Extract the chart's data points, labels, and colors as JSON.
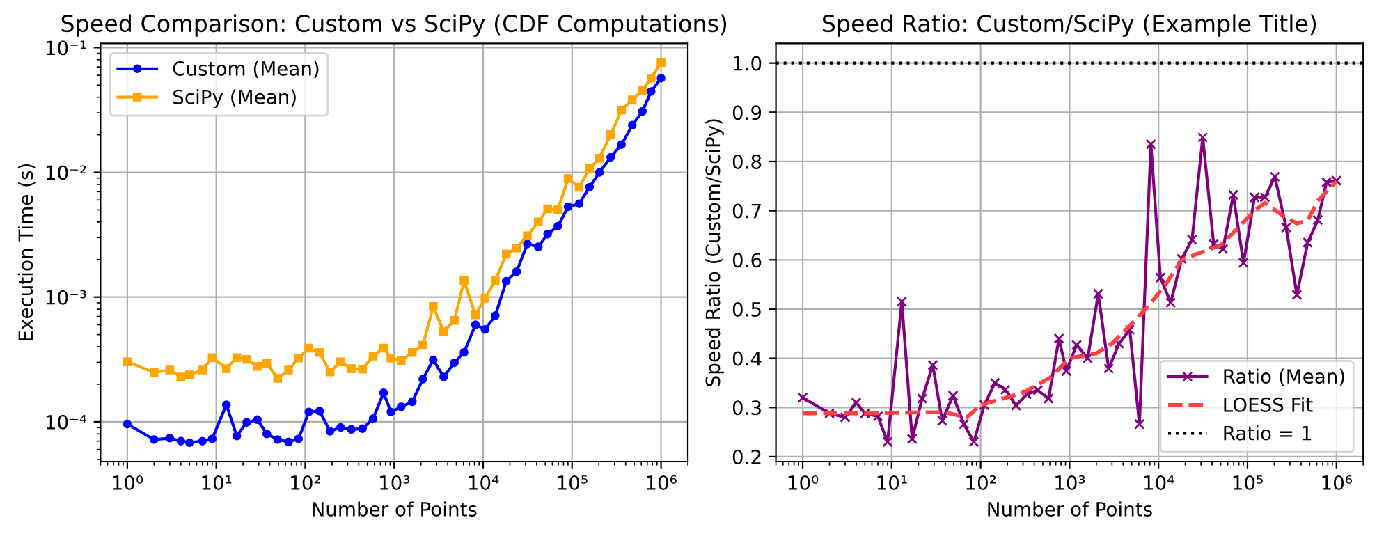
{
  "chart_data": [
    {
      "type": "line",
      "title": "Speed Comparison: Custom vs SciPy (CDF Computations)",
      "xlabel": "Number of Points",
      "ylabel": "Execution Time (s)",
      "log": "xy",
      "grid": true,
      "legend": "top left",
      "x": [
        1,
        2,
        3,
        4,
        5,
        7,
        9,
        13,
        17,
        22,
        29,
        37,
        49,
        65,
        84,
        110,
        145,
        190,
        250,
        330,
        440,
        580,
        760,
        920,
        1200,
        1600,
        2100,
        2750,
        3600,
        4750,
        6100,
        8200,
        10500,
        13700,
        18200,
        23800,
        31400,
        41700,
        53100,
        69200,
        90200,
        120000,
        157000,
        203000,
        272000,
        359000,
        475000,
        617000,
        774000,
        1000000
      ],
      "xlim": [
        0.5,
        2000000
      ],
      "xticks": [
        {
          "value": 1,
          "label": "10⁰"
        },
        {
          "value": 10,
          "label": "10¹"
        },
        {
          "value": 100,
          "label": "10²"
        },
        {
          "value": 1000,
          "label": "10³"
        },
        {
          "value": 10000,
          "label": "10⁴"
        },
        {
          "value": 100000,
          "label": "10⁵"
        },
        {
          "value": 1000000,
          "label": "10⁶"
        }
      ],
      "ylim": [
        4.8e-05,
        0.108
      ],
      "yticks": [
        {
          "value": 0.0001,
          "label": "10⁻⁴"
        },
        {
          "value": 0.001,
          "label": "10⁻³"
        },
        {
          "value": 0.01,
          "label": "10⁻²"
        },
        {
          "value": 0.1,
          "label": "10⁻¹"
        }
      ],
      "series": [
        {
          "name": "Custom (Mean)",
          "color": "#0000ff",
          "marker": "circle",
          "values": [
            9.6e-05,
            7.2e-05,
            7.4e-05,
            7e-05,
            6.8e-05,
            7e-05,
            7.3e-05,
            0.000137,
            7.7e-05,
            9.9e-05,
            0.000104,
            8e-05,
            7.2e-05,
            6.9e-05,
            7.3e-05,
            0.00012,
            0.000122,
            8.4e-05,
            9e-05,
            8.7e-05,
            8.8e-05,
            0.000106,
            0.000171,
            0.00012,
            0.000132,
            0.000145,
            0.00022,
            0.000313,
            0.000229,
            0.000298,
            0.00036,
            0.0006,
            0.00055,
            0.00071,
            0.00134,
            0.0016,
            0.00267,
            0.00253,
            0.0032,
            0.0037,
            0.0053,
            0.0056,
            0.0076,
            0.01,
            0.0132,
            0.0167,
            0.0239,
            0.0308,
            0.0445,
            0.057
          ]
        },
        {
          "name": "SciPy (Mean)",
          "color": "#ffa500",
          "marker": "square",
          "values": [
            0.000303,
            0.000249,
            0.00026,
            0.000229,
            0.000238,
            0.00026,
            0.000327,
            0.000267,
            0.000327,
            0.000316,
            0.000278,
            0.000295,
            0.000223,
            0.00026,
            0.000325,
            0.00039,
            0.00036,
            0.000251,
            0.000303,
            0.000267,
            0.000264,
            0.000336,
            0.00039,
            0.000325,
            0.00031,
            0.00036,
            0.00041,
            0.00084,
            0.00053,
            0.00065,
            0.00135,
            0.00072,
            0.00098,
            0.00136,
            0.00221,
            0.00247,
            0.0031,
            0.004,
            0.0051,
            0.005,
            0.0089,
            0.0076,
            0.0107,
            0.013,
            0.0201,
            0.0316,
            0.0381,
            0.0456,
            0.057,
            0.076
          ]
        }
      ]
    },
    {
      "type": "line",
      "title": "Speed Ratio: Custom/SciPy (Example Title)",
      "xlabel": "Number of Points",
      "ylabel": "Speed Ratio (Custom/SciPy)",
      "log": "x",
      "grid": true,
      "legend": "bottom right",
      "x": [
        1,
        2,
        3,
        4,
        5,
        7,
        9,
        13,
        17,
        22,
        29,
        37,
        49,
        65,
        84,
        110,
        145,
        190,
        250,
        330,
        440,
        580,
        760,
        920,
        1200,
        1600,
        2100,
        2750,
        3600,
        4750,
        6100,
        8200,
        10500,
        13700,
        18200,
        23800,
        31400,
        41700,
        53100,
        69200,
        90200,
        120000,
        157000,
        203000,
        272000,
        359000,
        475000,
        617000,
        774000,
        1000000
      ],
      "xlim": [
        0.5,
        2000000
      ],
      "xticks": [
        {
          "value": 1,
          "label": "10⁰"
        },
        {
          "value": 10,
          "label": "10¹"
        },
        {
          "value": 100,
          "label": "10²"
        },
        {
          "value": 1000,
          "label": "10³"
        },
        {
          "value": 10000,
          "label": "10⁴"
        },
        {
          "value": 100000,
          "label": "10⁵"
        },
        {
          "value": 1000000,
          "label": "10⁶"
        }
      ],
      "ylim": [
        0.19,
        1.04
      ],
      "yticks": [
        0.2,
        0.3,
        0.4,
        0.5,
        0.6,
        0.7,
        0.8,
        0.9,
        {
          "value": 1.0,
          "label": "1.0"
        }
      ],
      "series": [
        {
          "name": "Ratio (Mean)",
          "color": "#800080",
          "marker": "cross",
          "values": [
            0.32,
            0.288,
            0.28,
            0.31,
            0.288,
            0.282,
            0.23,
            0.515,
            0.236,
            0.318,
            0.386,
            0.273,
            0.324,
            0.266,
            0.23,
            0.305,
            0.35,
            0.336,
            0.304,
            0.327,
            0.335,
            0.318,
            0.44,
            0.374,
            0.427,
            0.4,
            0.531,
            0.379,
            0.43,
            0.458,
            0.266,
            0.835,
            0.564,
            0.513,
            0.602,
            0.641,
            0.849,
            0.632,
            0.622,
            0.732,
            0.594,
            0.727,
            0.727,
            0.769,
            0.666,
            0.529,
            0.635,
            0.681,
            0.758,
            0.761
          ]
        },
        {
          "name": "LOESS Fit",
          "color": "#ff4040",
          "marker": "none",
          "line_style": "dashed",
          "x": [
            1,
            5,
            20,
            40,
            70,
            100,
            300,
            600,
            1000,
            2000,
            3000,
            5000,
            8000,
            12000,
            18200,
            30000,
            50000,
            69200,
            120000,
            157000,
            250000,
            359000,
            475000,
            617000,
            1000000
          ],
          "values": [
            0.288,
            0.288,
            0.29,
            0.29,
            0.28,
            0.305,
            0.33,
            0.36,
            0.4,
            0.41,
            0.43,
            0.47,
            0.51,
            0.55,
            0.6,
            0.615,
            0.63,
            0.655,
            0.7,
            0.716,
            0.69,
            0.674,
            0.68,
            0.72,
            0.76
          ]
        }
      ],
      "ref_lines": [
        {
          "axis": "y",
          "value": 1.0,
          "label": "Ratio = 1",
          "color": "#000000",
          "line_style": "dotted"
        }
      ]
    }
  ]
}
